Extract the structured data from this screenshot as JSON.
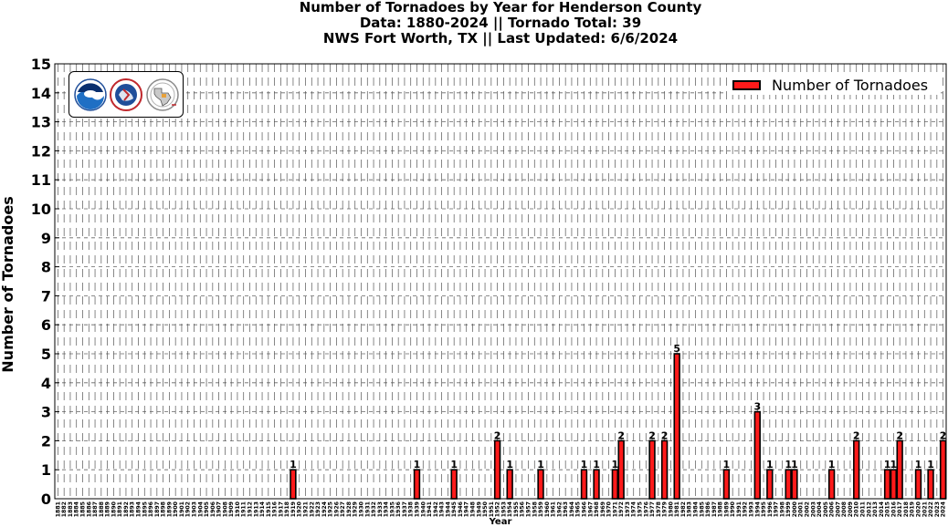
{
  "title": {
    "line1": "Number of Tornadoes by Year for Henderson County",
    "line2": "Data: 1880-2024 || Tornado Total: 39",
    "line3": "NWS Fort Worth, TX || Last Updated: 6/6/2024"
  },
  "logos": {
    "noaa_text": "NOAA",
    "nws_text": "NATIONAL WEATHER SERVICE"
  },
  "chart_data": {
    "type": "bar",
    "title": "Number of Tornadoes by Year for Henderson County",
    "xlabel": "Year",
    "ylabel": "Number of Tornadoes",
    "ylim": [
      0,
      15
    ],
    "yticks": [
      0,
      1,
      2,
      3,
      4,
      5,
      6,
      7,
      8,
      9,
      10,
      11,
      12,
      13,
      14,
      15
    ],
    "x_range": [
      1881,
      2024
    ],
    "grid": true,
    "legend_position": "top-right",
    "bar_color": "#ff1a1a",
    "series": [
      {
        "name": "Number of Tornadoes",
        "points": [
          {
            "year": 1919,
            "value": 1
          },
          {
            "year": 1939,
            "value": 1
          },
          {
            "year": 1945,
            "value": 1
          },
          {
            "year": 1952,
            "value": 2
          },
          {
            "year": 1954,
            "value": 1
          },
          {
            "year": 1959,
            "value": 1
          },
          {
            "year": 1966,
            "value": 1
          },
          {
            "year": 1968,
            "value": 1
          },
          {
            "year": 1971,
            "value": 1
          },
          {
            "year": 1972,
            "value": 2
          },
          {
            "year": 1977,
            "value": 2
          },
          {
            "year": 1979,
            "value": 2
          },
          {
            "year": 1981,
            "value": 5
          },
          {
            "year": 1989,
            "value": 1
          },
          {
            "year": 1994,
            "value": 3
          },
          {
            "year": 1996,
            "value": 1
          },
          {
            "year": 1999,
            "value": 1
          },
          {
            "year": 2000,
            "value": 1
          },
          {
            "year": 2006,
            "value": 1
          },
          {
            "year": 2010,
            "value": 2
          },
          {
            "year": 2015,
            "value": 1
          },
          {
            "year": 2016,
            "value": 1
          },
          {
            "year": 2017,
            "value": 2
          },
          {
            "year": 2020,
            "value": 1
          },
          {
            "year": 2022,
            "value": 1
          },
          {
            "year": 2024,
            "value": 2
          }
        ]
      }
    ]
  }
}
